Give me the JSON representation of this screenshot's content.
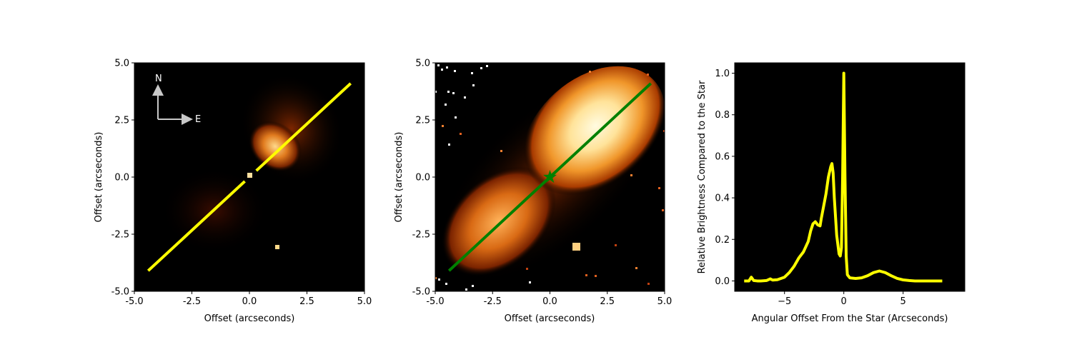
{
  "colors": {
    "yellow_line": "#ffff00",
    "green_line": "#008000",
    "nebula_core": "#fff2b0",
    "nebula_mid": "#f29a2a",
    "nebula_edge": "#9a2e00",
    "background": "#000000",
    "compass": "#c8c8c8"
  },
  "chart_data": [
    {
      "type": "heatmap",
      "description_key": "left",
      "xlabel": "Offset (arcseconds)",
      "ylabel": "Offset (arcseconds)",
      "xlim": [
        -5.0,
        5.0
      ],
      "ylim": [
        -5.0,
        5.0
      ],
      "xticks": [
        -5.0,
        -2.5,
        0.0,
        2.5,
        5.0
      ],
      "yticks": [
        -5.0,
        -2.5,
        0.0,
        2.5,
        5.0
      ],
      "xtick_labels": [
        "-5.0",
        "-2.5",
        "0.0",
        "2.5",
        "5.0"
      ],
      "ytick_labels": [
        "-5.0",
        "-2.5",
        "0.0",
        "2.5",
        "5.0"
      ],
      "colormap": "afmhot",
      "cut_line": {
        "x": [
          -4.4,
          4.4
        ],
        "y": [
          -4.1,
          4.1
        ],
        "gap": [
          -0.2,
          0.3
        ],
        "color": "yellow"
      },
      "compass": {
        "north_label": "N",
        "east_label": "E"
      },
      "star": [
        0.0,
        0.0
      ],
      "point_sources": [
        [
          1.2,
          -3.1
        ]
      ]
    },
    {
      "type": "heatmap",
      "description_key": "middle",
      "xlabel": "Offset (arcseconds)",
      "ylabel": "Offset (arcseconds)",
      "xlim": [
        -5.0,
        5.0
      ],
      "ylim": [
        -5.0,
        5.0
      ],
      "xticks": [
        -5.0,
        -2.5,
        0.0,
        2.5,
        5.0
      ],
      "yticks": [
        -5.0,
        -2.5,
        0.0,
        2.5,
        5.0
      ],
      "xtick_labels": [
        "-5.0",
        "-2.5",
        "0.0",
        "2.5",
        "5.0"
      ],
      "ytick_labels": [
        "-5.0",
        "-2.5",
        "0.0",
        "2.5",
        "5.0"
      ],
      "colormap": "afmhot",
      "scale": "log-stretched",
      "cut_line": {
        "x": [
          -4.4,
          4.4
        ],
        "y": [
          -4.1,
          4.1
        ],
        "color": "green"
      },
      "star_marker": [
        0.0,
        0.0
      ],
      "point_sources": [
        [
          1.2,
          -3.1
        ]
      ]
    },
    {
      "type": "line",
      "xlabel": "Angular Offset From the Star (Arcseconds)",
      "ylabel": "Relative Brightness Compared to the Star",
      "xlim": [
        -9.2,
        10.2
      ],
      "ylim": [
        -0.05,
        1.05
      ],
      "xticks": [
        -5,
        0,
        5
      ],
      "yticks": [
        0.0,
        0.2,
        0.4,
        0.6,
        0.8,
        1.0
      ],
      "xtick_labels": [
        "−5",
        "0",
        "5"
      ],
      "ytick_labels": [
        "0.0",
        "0.2",
        "0.4",
        "0.6",
        "0.8",
        "1.0"
      ],
      "series": [
        {
          "color": "yellow",
          "x": [
            -8.4,
            -8.0,
            -7.8,
            -7.6,
            -7.3,
            -7.0,
            -6.5,
            -6.2,
            -6.0,
            -5.6,
            -5.0,
            -4.6,
            -4.2,
            -3.8,
            -3.4,
            -3.0,
            -2.8,
            -2.6,
            -2.4,
            -2.2,
            -2.0,
            -1.9,
            -1.7,
            -1.5,
            -1.3,
            -1.1,
            -1.0,
            -0.9,
            -0.8,
            -0.6,
            -0.4,
            -0.3,
            -0.2,
            -0.1,
            0.0,
            0.1,
            0.2,
            0.3,
            0.5,
            1.0,
            1.5,
            2.0,
            2.5,
            3.0,
            3.5,
            4.0,
            4.5,
            5.0,
            5.5,
            6.0,
            7.0,
            8.3
          ],
          "y": [
            0.0,
            0.0,
            0.018,
            0.002,
            0.0,
            0.0,
            0.002,
            0.01,
            0.004,
            0.006,
            0.018,
            0.04,
            0.07,
            0.11,
            0.14,
            0.19,
            0.24,
            0.275,
            0.285,
            0.27,
            0.265,
            0.3,
            0.36,
            0.42,
            0.5,
            0.55,
            0.565,
            0.52,
            0.4,
            0.22,
            0.13,
            0.12,
            0.16,
            0.5,
            1.0,
            0.5,
            0.12,
            0.03,
            0.015,
            0.012,
            0.015,
            0.025,
            0.04,
            0.048,
            0.04,
            0.025,
            0.012,
            0.005,
            0.002,
            0.0,
            0.0,
            0.0
          ]
        }
      ]
    }
  ]
}
